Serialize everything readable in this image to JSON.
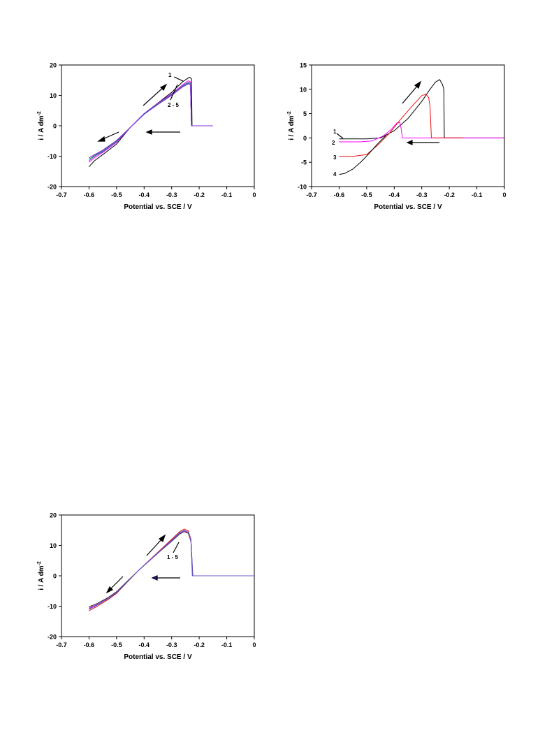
{
  "charts": [
    {
      "x_ticks": [
        "-0.7",
        "-0.6",
        "-0.5",
        "-0.4",
        "-0.3",
        "-0.2",
        "-0.1",
        "0"
      ],
      "y_ticks": [
        "20",
        "10",
        "0",
        "-10",
        "-20"
      ],
      "x_title": "Potential vs. SCE  /  V",
      "y_title_main": "i  /  A dm",
      "y_title_sup": "-2",
      "labels": [
        "1",
        "2 - 5"
      ]
    },
    {
      "x_ticks": [
        "-0.7",
        "-0.6",
        "-0.5",
        "-0.4",
        "-0.3",
        "-0.2",
        "-0.1",
        "0"
      ],
      "y_ticks": [
        "15",
        "10",
        "5",
        "0",
        "-5",
        "-10"
      ],
      "x_title": "Potential vs. SCE  /  V",
      "y_title_main": "i  /  A dm",
      "y_title_sup": "-2",
      "labels": [
        "1",
        "2",
        "3",
        "4"
      ]
    },
    {
      "x_ticks": [
        "-0.7",
        "-0.6",
        "-0.5",
        "-0.4",
        "-0.3",
        "-0.2",
        "-0.1",
        "0"
      ],
      "y_ticks": [
        "20",
        "10",
        "0",
        "-10",
        "-20"
      ],
      "x_title": "Potential vs. SCE  /  V",
      "y_title_main": "i  /  A dm",
      "y_title_sup": "-2",
      "labels": [
        "1 - 5"
      ]
    }
  ],
  "chart_data": [
    {
      "type": "line",
      "xlabel": "Potential vs. SCE  /  V",
      "ylabel": "i  /  A dm-2",
      "xlim": [
        -0.7,
        0
      ],
      "ylim": [
        -20,
        20
      ],
      "series": [
        {
          "color": "#000000",
          "x": [
            -0.6,
            -0.58,
            -0.55,
            -0.5,
            -0.45,
            -0.4,
            -0.35,
            -0.3,
            -0.26,
            -0.235,
            -0.228,
            -0.226,
            -0.2,
            -0.15
          ],
          "y": [
            -13.5,
            -11.5,
            -9.5,
            -6,
            -0.5,
            4,
            7.5,
            11,
            14.5,
            16,
            15.5,
            0,
            0,
            0
          ]
        },
        {
          "color": "#ff00ff",
          "x": [
            -0.6,
            -0.58,
            -0.55,
            -0.5,
            -0.45,
            -0.4,
            -0.35,
            -0.3,
            -0.26,
            -0.24,
            -0.232,
            -0.228,
            -0.2,
            -0.15
          ],
          "y": [
            -12,
            -10.5,
            -8.8,
            -5.5,
            -0.5,
            4,
            7.5,
            10.5,
            13.5,
            14.8,
            14.5,
            0,
            0,
            0
          ]
        },
        {
          "color": "#3355cc",
          "x": [
            -0.6,
            -0.58,
            -0.55,
            -0.5,
            -0.45,
            -0.4,
            -0.35,
            -0.3,
            -0.26,
            -0.24,
            -0.232,
            -0.228,
            -0.2,
            -0.15
          ],
          "y": [
            -11.5,
            -10,
            -8.5,
            -5.2,
            -0.5,
            4,
            7.3,
            10.3,
            13.2,
            14.3,
            14,
            0,
            0,
            0
          ]
        },
        {
          "color": "#2e8b57",
          "x": [
            -0.6,
            -0.58,
            -0.55,
            -0.5,
            -0.45,
            -0.4,
            -0.35,
            -0.3,
            -0.26,
            -0.24,
            -0.232,
            -0.228,
            -0.2,
            -0.15
          ],
          "y": [
            -11,
            -9.8,
            -8.2,
            -5,
            -0.5,
            3.8,
            7.2,
            10.1,
            13,
            14,
            13.8,
            0,
            0,
            0
          ]
        },
        {
          "color": "#8a2be2",
          "x": [
            -0.6,
            -0.58,
            -0.55,
            -0.5,
            -0.45,
            -0.4,
            -0.35,
            -0.3,
            -0.26,
            -0.24,
            -0.232,
            -0.228,
            -0.2,
            -0.15
          ],
          "y": [
            -10.5,
            -9.5,
            -8,
            -4.8,
            -0.5,
            3.8,
            7,
            10,
            12.8,
            13.8,
            13.5,
            0,
            0,
            0
          ]
        }
      ]
    },
    {
      "type": "line",
      "xlabel": "Potential vs. SCE  /  V",
      "ylabel": "i  /  A dm-2",
      "xlim": [
        -0.7,
        0
      ],
      "ylim": [
        -10,
        15
      ],
      "series": [
        {
          "name": "1",
          "color": "#000000",
          "x": [
            -0.6,
            -0.5,
            -0.45,
            -0.4,
            -0.35,
            -0.3,
            -0.27,
            -0.25,
            -0.235,
            -0.225,
            -0.22,
            -0.218,
            -0.15,
            0
          ],
          "y": [
            -0.2,
            -0.2,
            0,
            1.5,
            4,
            7.5,
            10,
            11.5,
            12,
            11,
            10,
            0,
            0,
            0
          ]
        },
        {
          "name": "2",
          "color": "#ff00ff",
          "x": [
            -0.6,
            -0.52,
            -0.48,
            -0.44,
            -0.41,
            -0.39,
            -0.38,
            -0.375,
            -0.37,
            -0.15,
            0
          ],
          "y": [
            -0.8,
            -0.8,
            -0.6,
            0.4,
            1.8,
            3.1,
            3.2,
            2,
            0,
            0,
            0
          ]
        },
        {
          "name": "3",
          "color": "#ee1111",
          "x": [
            -0.6,
            -0.55,
            -0.5,
            -0.46,
            -0.42,
            -0.38,
            -0.34,
            -0.3,
            -0.285,
            -0.275,
            -0.27,
            -0.265,
            -0.15
          ],
          "y": [
            -3.8,
            -3.8,
            -3.4,
            -1.5,
            0.8,
            3.6,
            6.2,
            8.7,
            9,
            8.3,
            6.5,
            0,
            0
          ]
        },
        {
          "name": "4",
          "color": "#000000",
          "x": [
            -0.6,
            -0.58,
            -0.55,
            -0.52,
            -0.49,
            -0.46,
            -0.43
          ],
          "y": [
            -7.5,
            -7.3,
            -6.4,
            -4.9,
            -3.1,
            -1.2,
            0.5
          ]
        }
      ]
    },
    {
      "type": "line",
      "xlabel": "Potential vs. SCE  /  V",
      "ylabel": "i  /  A dm-2",
      "xlim": [
        -0.7,
        0
      ],
      "ylim": [
        -20,
        20
      ],
      "series": [
        {
          "color": "#ee1111",
          "x": [
            -0.6,
            -0.57,
            -0.53,
            -0.5,
            -0.46,
            -0.42,
            -0.38,
            -0.34,
            -0.3,
            -0.27,
            -0.255,
            -0.24,
            -0.23,
            -0.225,
            -0.15,
            0
          ],
          "y": [
            -11.5,
            -10,
            -7.8,
            -5.8,
            -2,
            1.8,
            5.2,
            8.6,
            12,
            14.6,
            15.4,
            14.8,
            12,
            0,
            0,
            0
          ]
        },
        {
          "color": "#2a3fbf",
          "x": [
            -0.6,
            -0.57,
            -0.53,
            -0.5,
            -0.46,
            -0.42,
            -0.38,
            -0.34,
            -0.3,
            -0.27,
            -0.255,
            -0.24,
            -0.23,
            -0.223,
            -0.15,
            0
          ],
          "y": [
            -11,
            -9.6,
            -7.5,
            -5.6,
            -1.9,
            1.8,
            5.1,
            8.4,
            11.7,
            14.2,
            15,
            14.4,
            11.8,
            0,
            0,
            0
          ]
        },
        {
          "color": "#ff00ff",
          "x": [
            -0.6,
            -0.57,
            -0.53,
            -0.5,
            -0.46,
            -0.42,
            -0.38,
            -0.34,
            -0.3,
            -0.27,
            -0.255,
            -0.24,
            -0.23,
            -0.224,
            -0.15,
            0
          ],
          "y": [
            -10.6,
            -9.4,
            -7.3,
            -5.4,
            -1.8,
            1.8,
            5.1,
            8.3,
            11.5,
            14,
            14.8,
            14.2,
            11.5,
            0,
            0,
            0
          ]
        },
        {
          "color": "#333333",
          "x": [
            -0.6,
            -0.57,
            -0.53,
            -0.5,
            -0.46,
            -0.42,
            -0.38,
            -0.34,
            -0.3,
            -0.27,
            -0.255,
            -0.24,
            -0.23,
            -0.224,
            -0.15,
            0
          ],
          "y": [
            -10.2,
            -9.1,
            -7.1,
            -5.2,
            -1.7,
            1.8,
            5,
            8.2,
            11.3,
            13.8,
            14.5,
            14,
            11.3,
            0,
            0,
            0
          ]
        },
        {
          "color": "#6a5acd",
          "x": [
            -0.6,
            -0.57,
            -0.53,
            -0.5,
            -0.46,
            -0.42,
            -0.38,
            -0.34,
            -0.3,
            -0.27,
            -0.255,
            -0.24,
            -0.23,
            -0.224,
            -0.15,
            0
          ],
          "y": [
            -10.8,
            -9.5,
            -7.4,
            -5.5,
            -1.9,
            1.8,
            5,
            8.3,
            11.5,
            14.1,
            14.9,
            14.3,
            11.6,
            0,
            0,
            0
          ]
        }
      ]
    }
  ]
}
